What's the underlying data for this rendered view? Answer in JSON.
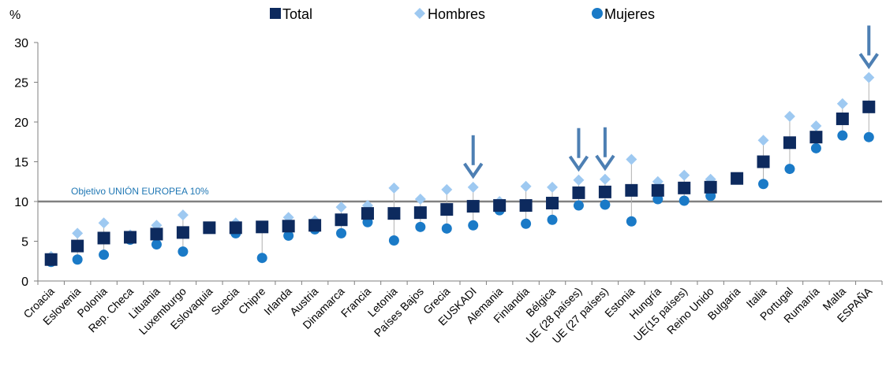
{
  "chart_data": {
    "type": "scatter",
    "ylabel": "%",
    "ylim": [
      0,
      30
    ],
    "yticks": [
      "0",
      "5",
      "10",
      "15",
      "20",
      "25",
      "30"
    ],
    "categories": [
      "Croacia",
      "Eslovenia",
      "Polonia",
      "Rep. Checa",
      "Lituania",
      "Luxemburgo",
      "Eslovaquia",
      "Suecia",
      "Chipre",
      "Irlanda",
      "Austria",
      "Dinamarca",
      "Francia",
      "Letonia",
      "Países Bajos",
      "Grecia",
      "EUSKADI",
      "Alemania",
      "Finlandia",
      "Bélgica",
      "UE (28 países)",
      "UE (27 países)",
      "Estonia",
      "Hungría",
      "UE(15 países)",
      "Reino Unido",
      "Bulgaria",
      "Italia",
      "Portugal",
      "Rumanía",
      "Malta",
      "ESPAÑA"
    ],
    "series": [
      {
        "name": "Total",
        "marker": "square",
        "color": "#0d2a5e",
        "values": [
          2.7,
          4.4,
          5.4,
          5.5,
          5.9,
          6.1,
          6.7,
          6.7,
          6.8,
          6.9,
          7.0,
          7.7,
          8.5,
          8.5,
          8.6,
          9.0,
          9.4,
          9.5,
          9.5,
          9.8,
          11.1,
          11.2,
          11.4,
          11.4,
          11.7,
          11.8,
          12.9,
          15.0,
          17.4,
          18.1,
          20.4,
          21.9
        ]
      },
      {
        "name": "Hombres",
        "marker": "diamond",
        "color": "#9ec9f1",
        "values": [
          3.1,
          6.0,
          7.3,
          5.8,
          7.0,
          8.3,
          6.8,
          7.3,
          6.8,
          8.0,
          7.6,
          9.3,
          9.5,
          11.7,
          10.3,
          11.5,
          11.8,
          10.0,
          11.9,
          11.8,
          12.7,
          12.8,
          15.3,
          12.5,
          13.3,
          12.8,
          12.9,
          17.7,
          20.7,
          19.5,
          22.3,
          25.6
        ]
      },
      {
        "name": "Mujeres",
        "marker": "circle",
        "color": "#1a7ac7",
        "values": [
          2.4,
          2.7,
          3.3,
          5.2,
          4.6,
          3.7,
          6.6,
          6.0,
          2.9,
          5.7,
          6.5,
          6.0,
          7.4,
          5.1,
          6.8,
          6.6,
          7.0,
          8.9,
          7.2,
          7.7,
          9.5,
          9.6,
          7.5,
          10.3,
          10.1,
          10.7,
          12.9,
          12.2,
          14.1,
          16.7,
          18.3,
          18.1
        ]
      }
    ],
    "reference_line": {
      "value": 10,
      "label": "Objetivo UNIÓN EUROPEA 10%",
      "color": "#808080"
    },
    "highlighted": [
      "EUSKADI",
      "UE (28 países)",
      "UE (27 países)",
      "ESPAÑA"
    ],
    "legend_position": "top",
    "grid": false
  }
}
